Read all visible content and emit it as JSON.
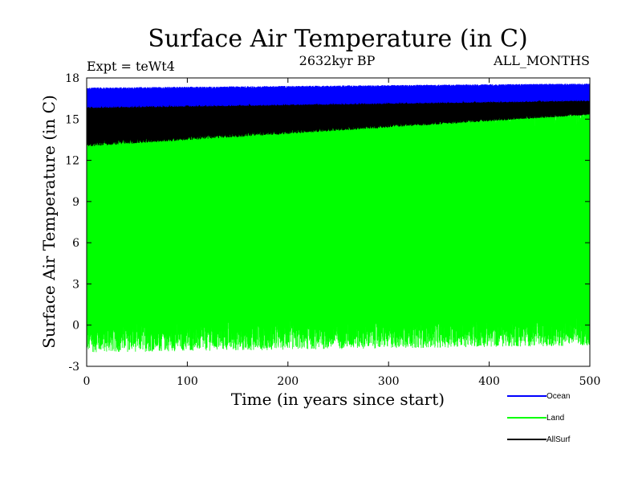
{
  "chart_data": {
    "type": "line",
    "title": "Surface Air Temperature (in C)",
    "subtitle": "2632kyr BP",
    "left_label": "Expt = teWt4",
    "right_label": "ALL_MONTHS",
    "xlabel": "Time (in years since start)",
    "ylabel": "Surface Air Temperature (in C)",
    "xlim": [
      0,
      500
    ],
    "ylim": [
      -3,
      18
    ],
    "xticks": [
      0,
      100,
      200,
      300,
      400,
      500
    ],
    "yticks": [
      -3,
      0,
      3,
      6,
      9,
      12,
      15,
      18
    ],
    "grid": false,
    "legend_position": "bottom-right",
    "series": [
      {
        "name": "Ocean",
        "color": "#0000ff",
        "description": "monthly values oscillating in a narrow band",
        "band_min_start": 15.8,
        "band_max_start": 17.3,
        "band_min_end": 16.3,
        "band_max_end": 17.6
      },
      {
        "name": "Land",
        "color": "#00ff00",
        "description": "monthly values oscillating with large seasonal cycle",
        "band_min_start": -2.0,
        "band_max_start": 16.2,
        "band_min_end": -1.5,
        "band_max_end": 16.4
      },
      {
        "name": "AllSurf",
        "color": "#000000",
        "description": "monthly values between land and ocean",
        "band_min_start": 13.0,
        "band_max_start": 16.6,
        "band_min_end": 15.3,
        "band_max_end": 16.9
      }
    ]
  }
}
